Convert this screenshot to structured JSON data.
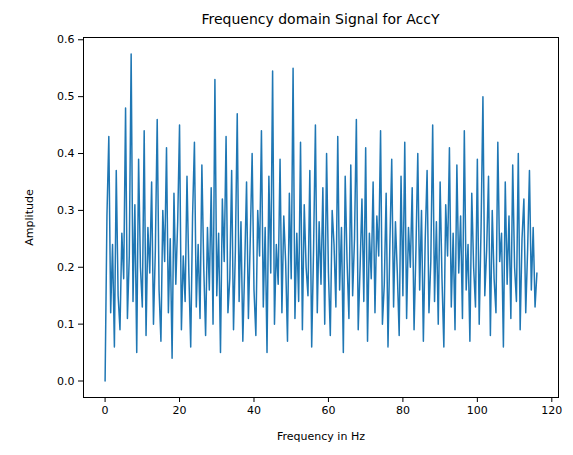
{
  "chart_data": {
    "type": "line",
    "title": "Frequency domain Signal for AccY",
    "x_label": "Frequency in Hz",
    "y_label": "Amplitude",
    "color": "#1f77b4",
    "grid": false,
    "xlim": [
      -5.8,
      121.8
    ],
    "xticks": [
      0,
      20,
      40,
      60,
      80,
      100,
      120
    ],
    "ylim": [
      -0.029,
      0.604
    ],
    "yticks": [
      {
        "value": 0,
        "label": "0.0"
      },
      {
        "value": 0.1,
        "label": "0.1"
      },
      {
        "value": 0.2,
        "label": "0.2"
      },
      {
        "value": 0.3,
        "label": "0.3"
      },
      {
        "value": 0.4,
        "label": "0.4"
      },
      {
        "value": 0.5,
        "label": "0.5"
      },
      {
        "value": 0.6,
        "label": "0.6"
      }
    ],
    "x": [
      0,
      0.5,
      1,
      1.5,
      2,
      2.5,
      3,
      3.5,
      4,
      4.5,
      5,
      5.5,
      6,
      6.5,
      7,
      7.5,
      8,
      8.5,
      9,
      9.5,
      10,
      10.5,
      11,
      11.5,
      12,
      12.5,
      13,
      13.5,
      14,
      14.5,
      15,
      15.5,
      16,
      16.5,
      17,
      17.5,
      18,
      18.5,
      19,
      19.5,
      20,
      20.5,
      21,
      21.5,
      22,
      22.5,
      23,
      23.5,
      24,
      24.5,
      25,
      25.5,
      26,
      26.5,
      27,
      27.5,
      28,
      28.5,
      29,
      29.5,
      30,
      30.5,
      31,
      31.5,
      32,
      32.5,
      33,
      33.5,
      34,
      34.5,
      35,
      35.5,
      36,
      36.5,
      37,
      37.5,
      38,
      38.5,
      39,
      39.5,
      40,
      40.5,
      41,
      41.5,
      42,
      42.5,
      43,
      43.5,
      44,
      44.5,
      45,
      45.5,
      46,
      46.5,
      47,
      47.5,
      48,
      48.5,
      49,
      49.5,
      50,
      50.5,
      51,
      51.5,
      52,
      52.5,
      53,
      53.5,
      54,
      54.5,
      55,
      55.5,
      56,
      56.5,
      57,
      57.5,
      58,
      58.5,
      59,
      59.5,
      60,
      60.5,
      61,
      61.5,
      62,
      62.5,
      63,
      63.5,
      64,
      64.5,
      65,
      65.5,
      66,
      66.5,
      67,
      67.5,
      68,
      68.5,
      69,
      69.5,
      70,
      70.5,
      71,
      71.5,
      72,
      72.5,
      73,
      73.5,
      74,
      74.5,
      75,
      75.5,
      76,
      76.5,
      77,
      77.5,
      78,
      78.5,
      79,
      79.5,
      80,
      80.5,
      81,
      81.5,
      82,
      82.5,
      83,
      83.5,
      84,
      84.5,
      85,
      85.5,
      86,
      86.5,
      87,
      87.5,
      88,
      88.5,
      89,
      89.5,
      90,
      90.5,
      91,
      91.5,
      92,
      92.5,
      93,
      93.5,
      94,
      94.5,
      95,
      95.5,
      96,
      96.5,
      97,
      97.5,
      98,
      98.5,
      99,
      99.5,
      100,
      100.5,
      101,
      101.5,
      102,
      102.5,
      103,
      103.5,
      104,
      104.5,
      105,
      105.5,
      106,
      106.5,
      107,
      107.5,
      108,
      108.5,
      109,
      109.5,
      110,
      110.5,
      111,
      111.5,
      112,
      112.5,
      113,
      113.5,
      114,
      114.5,
      115,
      115.5,
      116
    ],
    "values": [
      0.0,
      0.29,
      0.43,
      0.12,
      0.24,
      0.06,
      0.37,
      0.15,
      0.09,
      0.26,
      0.18,
      0.48,
      0.11,
      0.22,
      0.575,
      0.14,
      0.31,
      0.05,
      0.39,
      0.2,
      0.13,
      0.44,
      0.08,
      0.27,
      0.19,
      0.35,
      0.1,
      0.23,
      0.46,
      0.16,
      0.07,
      0.3,
      0.21,
      0.41,
      0.12,
      0.25,
      0.04,
      0.33,
      0.17,
      0.28,
      0.45,
      0.09,
      0.22,
      0.14,
      0.36,
      0.19,
      0.06,
      0.29,
      0.42,
      0.13,
      0.24,
      0.11,
      0.38,
      0.2,
      0.08,
      0.27,
      0.16,
      0.34,
      0.1,
      0.53,
      0.15,
      0.26,
      0.05,
      0.32,
      0.21,
      0.43,
      0.12,
      0.18,
      0.37,
      0.09,
      0.23,
      0.47,
      0.14,
      0.28,
      0.07,
      0.2,
      0.35,
      0.11,
      0.25,
      0.4,
      0.16,
      0.08,
      0.3,
      0.22,
      0.44,
      0.13,
      0.27,
      0.05,
      0.36,
      0.19,
      0.545,
      0.1,
      0.24,
      0.17,
      0.39,
      0.12,
      0.29,
      0.21,
      0.07,
      0.33,
      0.18,
      0.55,
      0.11,
      0.26,
      0.14,
      0.42,
      0.09,
      0.31,
      0.2,
      0.15,
      0.37,
      0.06,
      0.23,
      0.45,
      0.12,
      0.28,
      0.17,
      0.34,
      0.1,
      0.4,
      0.19,
      0.08,
      0.3,
      0.24,
      0.13,
      0.43,
      0.16,
      0.27,
      0.05,
      0.36,
      0.21,
      0.11,
      0.38,
      0.15,
      0.25,
      0.46,
      0.09,
      0.2,
      0.32,
      0.14,
      0.41,
      0.07,
      0.26,
      0.18,
      0.35,
      0.12,
      0.29,
      0.22,
      0.44,
      0.1,
      0.17,
      0.33,
      0.06,
      0.24,
      0.39,
      0.13,
      0.28,
      0.19,
      0.08,
      0.36,
      0.15,
      0.42,
      0.11,
      0.27,
      0.2,
      0.34,
      0.09,
      0.23,
      0.4,
      0.16,
      0.3,
      0.07,
      0.25,
      0.37,
      0.12,
      0.21,
      0.45,
      0.14,
      0.28,
      0.1,
      0.35,
      0.18,
      0.06,
      0.31,
      0.22,
      0.41,
      0.13,
      0.26,
      0.09,
      0.38,
      0.19,
      0.29,
      0.11,
      0.44,
      0.16,
      0.24,
      0.07,
      0.33,
      0.2,
      0.13,
      0.39,
      0.1,
      0.27,
      0.5,
      0.15,
      0.23,
      0.36,
      0.08,
      0.3,
      0.18,
      0.12,
      0.42,
      0.21,
      0.26,
      0.06,
      0.35,
      0.17,
      0.29,
      0.11,
      0.38,
      0.2,
      0.14,
      0.4,
      0.09,
      0.25,
      0.32,
      0.12,
      0.23,
      0.37,
      0.16,
      0.27,
      0.13,
      0.19
    ]
  }
}
